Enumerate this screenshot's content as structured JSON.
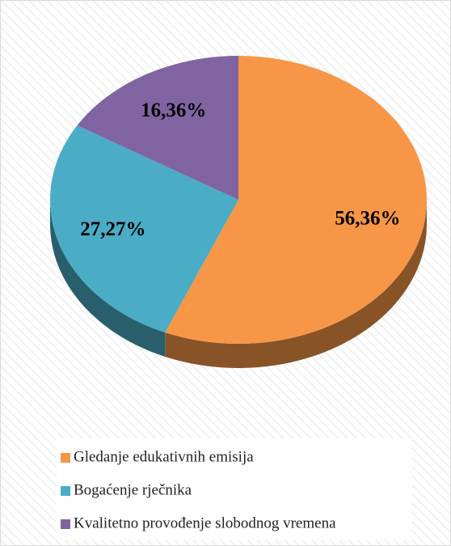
{
  "chart_data": {
    "type": "pie",
    "categories": [
      "Gledanje edukativnih emisija",
      "Bogaćenje rječnika",
      "Kvalitetno provođenje slobodnog vremena"
    ],
    "values": [
      56.36,
      27.27,
      16.36
    ],
    "value_labels": [
      "56,36%",
      "27,27%",
      "16,36%"
    ],
    "colors": [
      "#f79646",
      "#4bacc6",
      "#8064a2"
    ],
    "legend": "bottom"
  }
}
